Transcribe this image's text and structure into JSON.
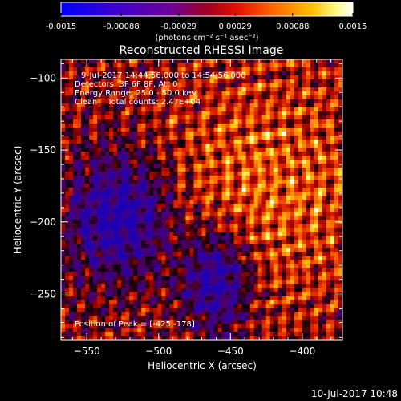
{
  "colorbar": {
    "tick_labels": [
      "-0.0015",
      "-0.00088",
      "-0.00029",
      "0.00029",
      "0.00088",
      "0.0015"
    ],
    "tick_values": [
      -0.0015,
      -0.00088,
      -0.00029,
      0.00029,
      0.00088,
      0.0015
    ],
    "range": [
      -0.0015,
      0.0015
    ],
    "units_label": "(photons cm⁻² s⁻¹ asec⁻²)",
    "colors": [
      "#0000ff",
      "#4b00c8",
      "#7a0080",
      "#c80000",
      "#ff5000",
      "#ffaa00",
      "#ffff80",
      "#ffffff"
    ]
  },
  "plot": {
    "title": "Reconstructed RHESSI Image",
    "xlabel": "Heliocentric X (arcsec)",
    "ylabel": "Heliocentric Y (arcsec)",
    "xlim": [
      -568,
      -372
    ],
    "ylim": [
      -282,
      -87
    ],
    "xticks": [
      -550,
      -500,
      -450,
      -400
    ],
    "xtick_labels": [
      "−550",
      "−500",
      "−450",
      "−400"
    ],
    "yticks": [
      -100,
      -150,
      -200,
      -250
    ],
    "ytick_labels": [
      "−100",
      "−150",
      "−200",
      "−250"
    ]
  },
  "annotations": {
    "line1": "9-Jul-2017 14:44:56.000 to 14:54:56.000",
    "line2": "Detectors: 3F 6F 8F, Att 0",
    "line3": "Energy Range: 25.0 - 50.0 keV",
    "line4": "Clean    Total counts: 2.47E+04",
    "peak": "Position of Peak = [-425,-178]"
  },
  "footer": {
    "timestamp": "10-Jul-2017 10:48"
  },
  "chart_data": {
    "type": "heatmap",
    "title": "Reconstructed RHESSI Image",
    "xlabel": "Heliocentric X (arcsec)",
    "ylabel": "Heliocentric Y (arcsec)",
    "xlim": [
      -568,
      -372
    ],
    "ylim": [
      -282,
      -87
    ],
    "peak_position": [
      -425,
      -178
    ],
    "colorbar_range": [
      -0.0015,
      0.0015
    ]
  }
}
